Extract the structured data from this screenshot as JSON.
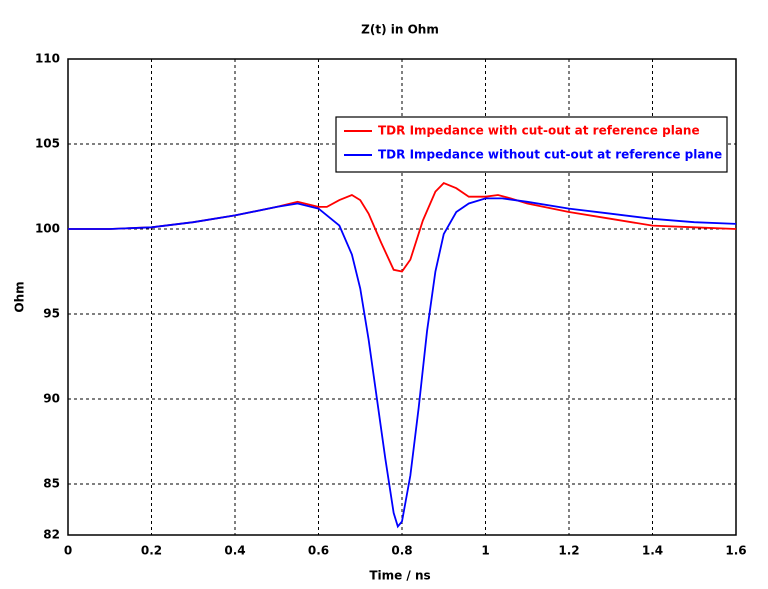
{
  "chart_data": {
    "type": "line",
    "title": "Z(t) in Ohm",
    "x_label": "Time / ns",
    "y_label": "Ohm",
    "xlim": [
      0,
      1.6
    ],
    "xticks": [
      0,
      0.2,
      0.4,
      0.6,
      0.8,
      1,
      1.2,
      1.4,
      1.6
    ],
    "ylim": [
      82,
      110
    ],
    "yticks": [
      82,
      85,
      90,
      95,
      100,
      105,
      110
    ],
    "grid": true,
    "legend": "upper right",
    "series": [
      {
        "name": "TDR Impedance with cut-out at reference plane",
        "color": "#ff0000",
        "x": [
          0,
          0.1,
          0.2,
          0.3,
          0.4,
          0.5,
          0.55,
          0.6,
          0.62,
          0.65,
          0.68,
          0.7,
          0.72,
          0.75,
          0.78,
          0.8,
          0.82,
          0.85,
          0.88,
          0.9,
          0.93,
          0.96,
          1.0,
          1.03,
          1.06,
          1.1,
          1.2,
          1.3,
          1.4,
          1.5,
          1.6
        ],
        "values": [
          100,
          100,
          100.1,
          100.4,
          100.8,
          101.3,
          101.6,
          101.3,
          101.3,
          101.7,
          102.0,
          101.7,
          100.9,
          99.2,
          97.6,
          97.5,
          98.2,
          100.5,
          102.2,
          102.7,
          102.4,
          101.9,
          101.9,
          102.0,
          101.8,
          101.5,
          101.0,
          100.6,
          100.2,
          100.1,
          100.0
        ]
      },
      {
        "name": "TDR Impedance without cut-out at reference plane",
        "color": "#0000ff",
        "x": [
          0,
          0.1,
          0.2,
          0.3,
          0.4,
          0.5,
          0.55,
          0.6,
          0.65,
          0.68,
          0.7,
          0.72,
          0.74,
          0.76,
          0.78,
          0.79,
          0.8,
          0.82,
          0.84,
          0.86,
          0.88,
          0.9,
          0.93,
          0.96,
          1.0,
          1.04,
          1.1,
          1.2,
          1.3,
          1.4,
          1.5,
          1.6
        ],
        "values": [
          100,
          100,
          100.1,
          100.4,
          100.8,
          101.3,
          101.5,
          101.2,
          100.2,
          98.5,
          96.5,
          93.5,
          90,
          86.5,
          83.3,
          82.5,
          82.8,
          85.5,
          89.5,
          94,
          97.5,
          99.7,
          101,
          101.5,
          101.8,
          101.8,
          101.6,
          101.2,
          100.9,
          100.6,
          100.4,
          100.3
        ]
      }
    ]
  }
}
